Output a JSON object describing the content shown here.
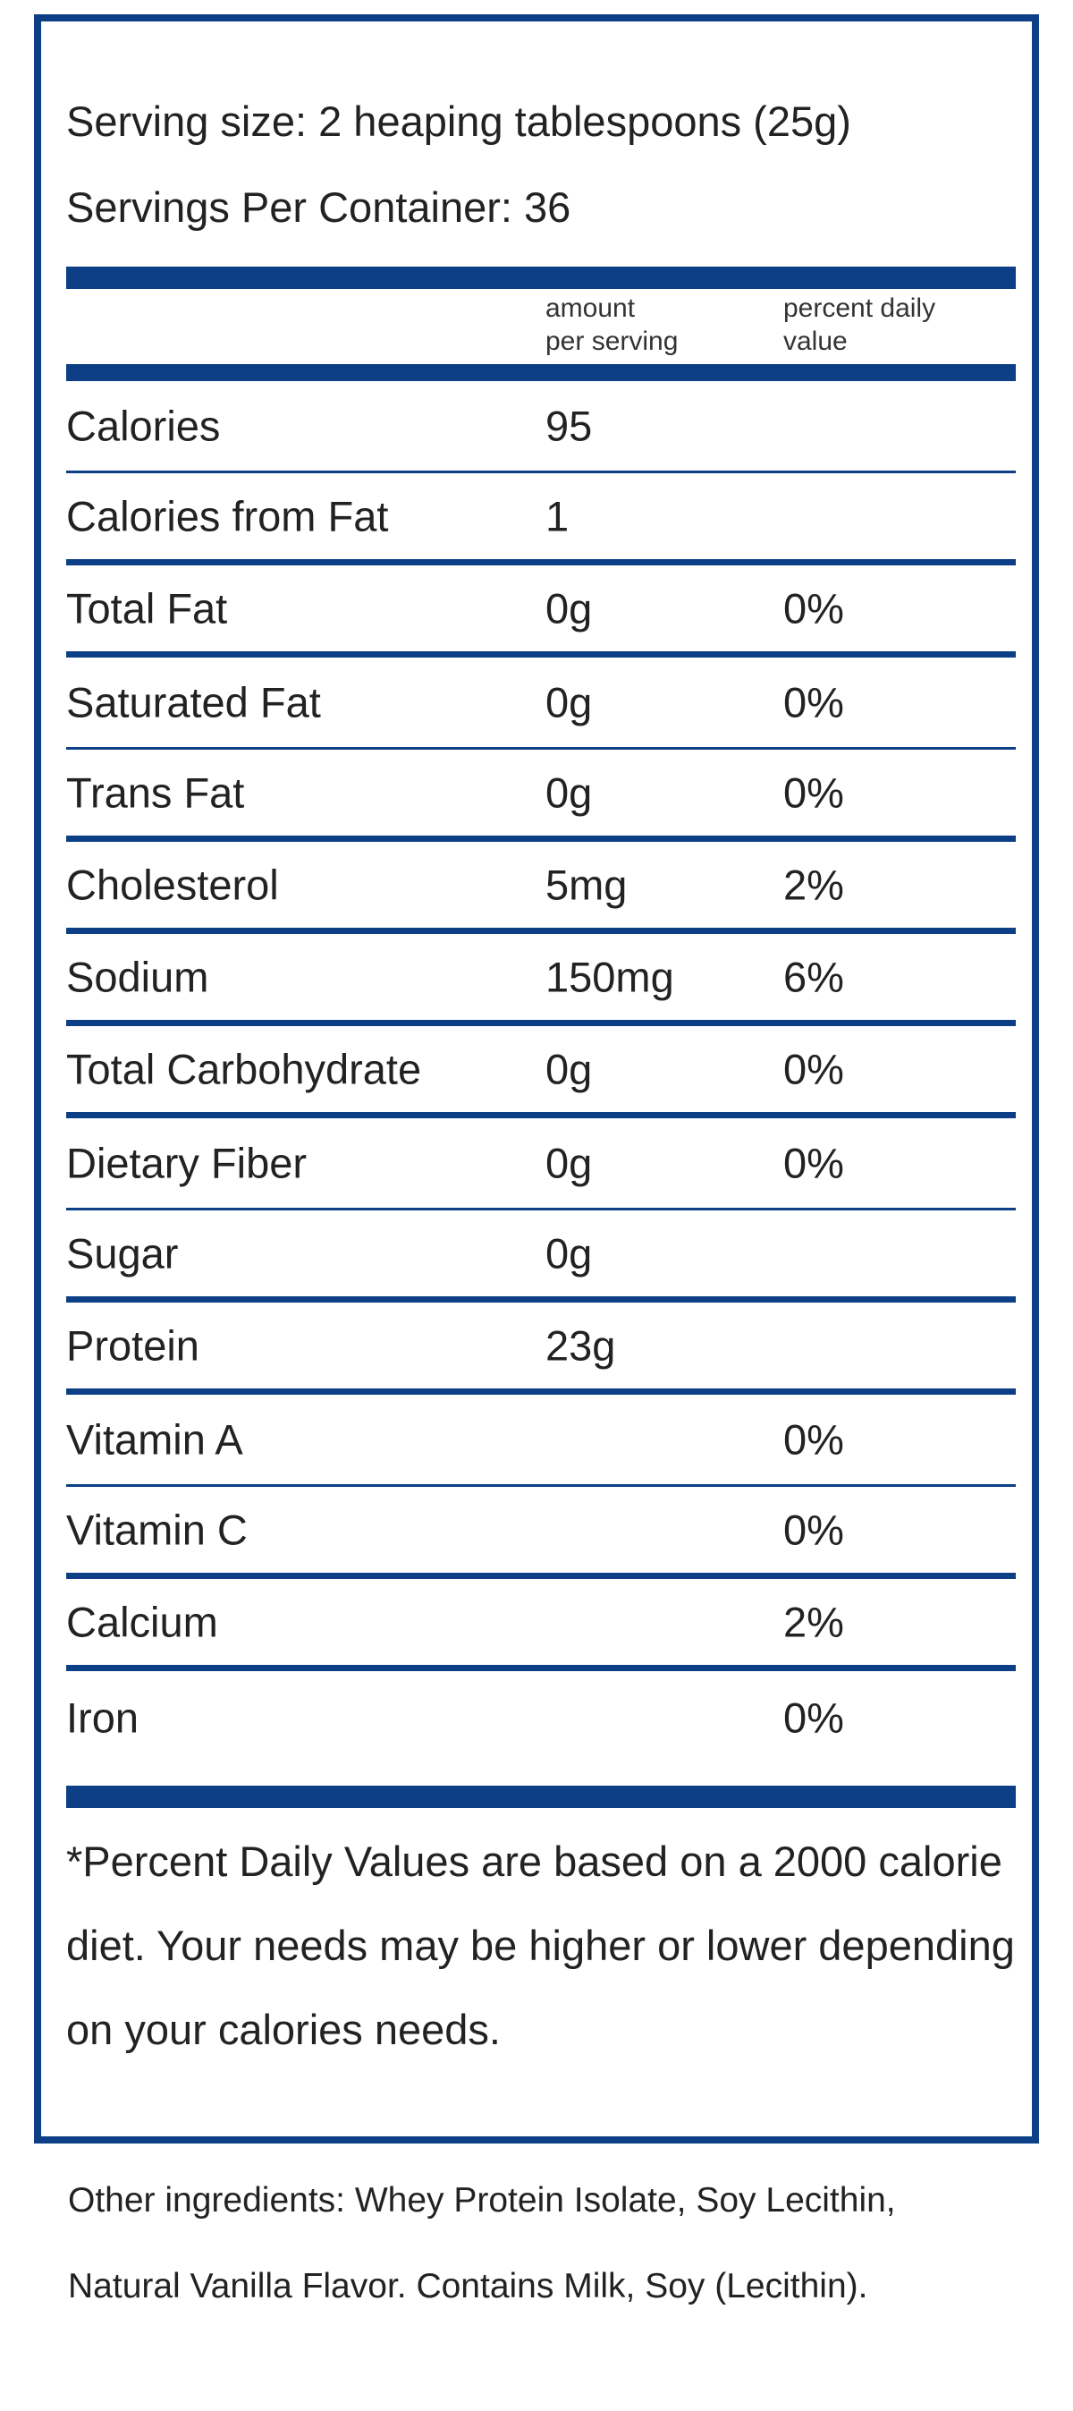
{
  "label": {
    "serving_size": "Serving size: 2 heaping tablespoons (25g)",
    "servings_per_container": "Servings Per Container: 36",
    "column_headers": {
      "amount_line1": "amount",
      "amount_line2": "per serving",
      "pdv_line1": "percent daily",
      "pdv_line2": "value"
    },
    "rows": [
      {
        "name": "Calories",
        "amount": "95",
        "percent": ""
      },
      {
        "name": "Calories from Fat",
        "amount": "1",
        "percent": ""
      },
      {
        "name": "Total Fat",
        "amount": "0g",
        "percent": "0%"
      },
      {
        "name": "Saturated Fat",
        "amount": "0g",
        "percent": "0%"
      },
      {
        "name": "Trans Fat",
        "amount": "0g",
        "percent": "0%"
      },
      {
        "name": "Cholesterol",
        "amount": "5mg",
        "percent": "2%"
      },
      {
        "name": "Sodium",
        "amount": "150mg",
        "percent": "6%"
      },
      {
        "name": "Total Carbohydrate",
        "amount": "0g",
        "percent": "0%"
      },
      {
        "name": "Dietary Fiber",
        "amount": "0g",
        "percent": "0%"
      },
      {
        "name": "Sugar",
        "amount": "0g",
        "percent": ""
      },
      {
        "name": "Protein",
        "amount": "23g",
        "percent": ""
      },
      {
        "name": "Vitamin A",
        "amount": "",
        "percent": "0%"
      },
      {
        "name": "Vitamin C",
        "amount": "",
        "percent": "0%"
      },
      {
        "name": "Calcium",
        "amount": "",
        "percent": "2%"
      },
      {
        "name": "Iron",
        "amount": "",
        "percent": "0%"
      }
    ],
    "footnote": "*Percent Daily Values are based on a 2000 calorie diet. Your needs may be higher or lower depending on your calories needs."
  },
  "ingredients": "Other ingredients: Whey Protein Isolate, Soy Lecithin, Natural Vanilla Flavor. Contains Milk, Soy (Lecithin).",
  "colors": {
    "border": "#0c3f86",
    "text": "#222222"
  }
}
